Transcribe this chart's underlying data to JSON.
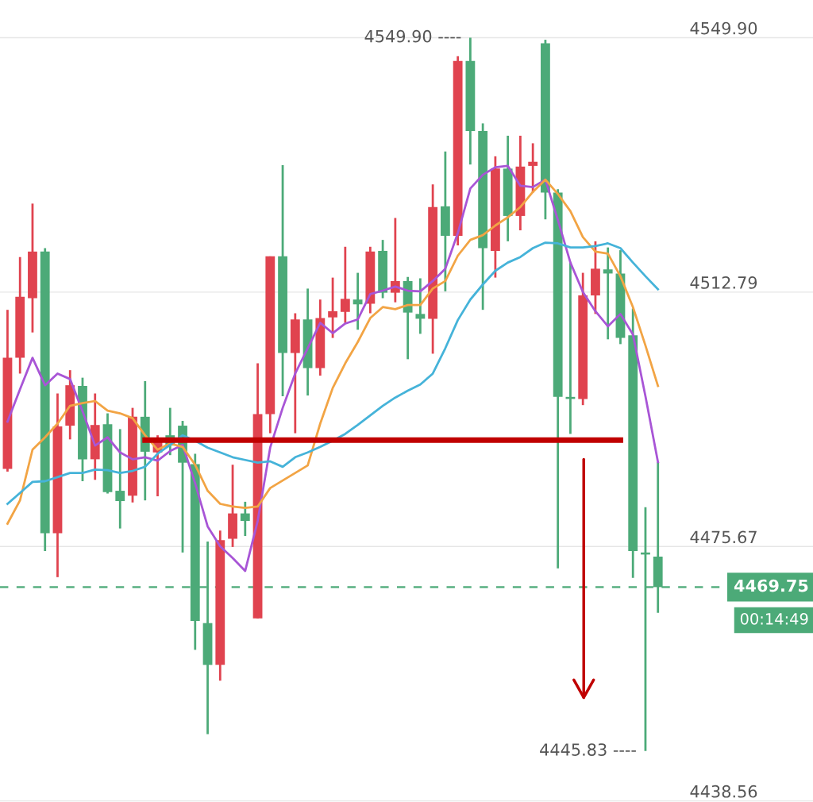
{
  "chart_data": {
    "type": "candlestick",
    "categories": [
      null,
      null,
      null,
      null,
      null,
      null,
      null,
      null,
      null,
      null,
      null,
      null,
      null,
      null,
      null,
      null,
      null,
      null,
      null,
      null,
      null,
      null,
      null,
      null,
      null,
      null,
      null,
      null,
      null,
      null,
      null,
      null,
      null,
      null,
      null,
      null,
      null,
      null,
      null,
      null,
      null,
      null,
      null,
      null,
      null,
      null,
      null,
      null,
      null,
      null,
      null,
      null,
      null
    ],
    "ohlc": [
      [
        4487.0,
        4510.2,
        4486.6,
        4503.2
      ],
      [
        4503.2,
        4517.9,
        4500.9,
        4512.1
      ],
      [
        4511.9,
        4525.7,
        4506.9,
        4518.7
      ],
      [
        4518.7,
        4519.2,
        4475.0,
        4477.6
      ],
      [
        4477.6,
        4498.0,
        4471.2,
        4493.2
      ],
      [
        4493.3,
        4501.4,
        4491.3,
        4499.2
      ],
      [
        4499.1,
        4500.3,
        4485.2,
        4488.4
      ],
      [
        4488.4,
        4498.0,
        4485.4,
        4493.4
      ],
      [
        4493.5,
        4495.1,
        4483.4,
        4483.6
      ],
      [
        4483.8,
        4492.8,
        4478.3,
        4482.3
      ],
      [
        4483.1,
        4495.9,
        4482.1,
        4494.6
      ],
      [
        4494.6,
        4499.8,
        4482.4,
        4489.5
      ],
      [
        4489.4,
        4491.9,
        4483.0,
        4491.1
      ],
      [
        4491.9,
        4495.9,
        4489.0,
        4490.4
      ],
      [
        4493.3,
        4494.0,
        4474.8,
        4487.9
      ],
      [
        4487.7,
        4489.2,
        4460.6,
        4464.8
      ],
      [
        4464.5,
        4476.4,
        4448.3,
        4458.4
      ],
      [
        4458.4,
        4478.0,
        4456.1,
        4476.6
      ],
      [
        4476.8,
        4487.6,
        4475.6,
        4480.5
      ],
      [
        4480.5,
        4482.2,
        4477.2,
        4479.4
      ],
      [
        4465.2,
        4502.4,
        4465.2,
        4495.0
      ],
      [
        4495.0,
        4518.0,
        4492.2,
        4518.0
      ],
      [
        4518.0,
        4531.3,
        4497.6,
        4503.9
      ],
      [
        4503.9,
        4509.7,
        4492.2,
        4508.8
      ],
      [
        4508.8,
        4513.3,
        4497.7,
        4501.7
      ],
      [
        4501.7,
        4511.7,
        4500.6,
        4509.0
      ],
      [
        4509.1,
        4514.9,
        4506.1,
        4510.0
      ],
      [
        4509.9,
        4519.4,
        4508.3,
        4511.8
      ],
      [
        4511.7,
        4515.6,
        4507.3,
        4511.0
      ],
      [
        4511.1,
        4519.4,
        4509.7,
        4518.7
      ],
      [
        4518.8,
        4520.4,
        4511.9,
        4512.7
      ],
      [
        4512.7,
        4523.6,
        4511.3,
        4514.4
      ],
      [
        4514.4,
        4515.0,
        4503.0,
        4509.8
      ],
      [
        4509.6,
        4514.8,
        4506.7,
        4508.9
      ],
      [
        4508.9,
        4528.5,
        4503.8,
        4525.2
      ],
      [
        4525.3,
        4533.3,
        4512.9,
        4521.0
      ],
      [
        4521.0,
        4547.2,
        4519.6,
        4546.5
      ],
      [
        4546.5,
        4549.9,
        4531.4,
        4536.3
      ],
      [
        4536.3,
        4537.4,
        4510.2,
        4519.2
      ],
      [
        4518.8,
        4532.6,
        4514.9,
        4530.8
      ],
      [
        4530.8,
        4535.6,
        4520.2,
        4523.9
      ],
      [
        4523.9,
        4535.6,
        4521.8,
        4531.1
      ],
      [
        4531.2,
        4534.5,
        4527.3,
        4531.8
      ],
      [
        4549.1,
        4549.6,
        4523.4,
        4527.3
      ],
      [
        4527.3,
        4527.8,
        4472.5,
        4497.5
      ],
      [
        4497.5,
        4517.2,
        4492.1,
        4497.2
      ],
      [
        4497.2,
        4515.6,
        4496.3,
        4512.3
      ],
      [
        4512.3,
        4520.2,
        4509.6,
        4516.2
      ],
      [
        4516.1,
        4519.3,
        4505.9,
        4515.5
      ],
      [
        4515.5,
        4518.9,
        4505.2,
        4506.1
      ],
      [
        4506.5,
        4510.4,
        4471.1,
        4475.0
      ],
      [
        4474.8,
        4481.4,
        4445.83,
        4474.5
      ],
      [
        4474.2,
        4488.0,
        4466.0,
        4469.75
      ]
    ],
    "colors": [
      "#e0434f",
      "#e0434f",
      "#e0434f",
      "#4caa78",
      "#e0434f",
      "#e0434f",
      "#4caa78",
      "#e0434f",
      "#4caa78",
      "#4caa78",
      "#e0434f",
      "#4caa78",
      "#e0434f",
      "#4caa78",
      "#4caa78",
      "#4caa78",
      "#4caa78",
      "#e0434f",
      "#e0434f",
      "#4caa78",
      "#e0434f",
      "#e0434f",
      "#4caa78",
      "#e0434f",
      "#4caa78",
      "#e0434f",
      "#e0434f",
      "#e0434f",
      "#4caa78",
      "#e0434f",
      "#4caa78",
      "#e0434f",
      "#4caa78",
      "#4caa78",
      "#e0434f",
      "#4caa78",
      "#e0434f",
      "#4caa78",
      "#4caa78",
      "#e0434f",
      "#4caa78",
      "#e0434f",
      "#e0434f",
      "#4caa78",
      "#4caa78",
      "#4caa78",
      "#e0434f",
      "#e0434f",
      "#4caa78",
      "#4caa78",
      "#4caa78",
      "#4caa78",
      "#4caa78"
    ],
    "series": [
      {
        "type": "line",
        "color": "#a855d6",
        "values": [
          4493.9,
          4498.6,
          4503.2,
          4499.2,
          4500.9,
          4500.1,
          4495.4,
          4490.4,
          4491.6,
          4489.4,
          4488.4,
          4488.7,
          4488.2,
          4489.6,
          4490.5,
          4484.9,
          4478.6,
          4475.7,
          4474.0,
          4472.1,
          4479.4,
          4490.1,
          4495.9,
          4500.9,
          4504.6,
          4508.3,
          4506.8,
          4508.2,
          4508.8,
          4512.5,
          4513.0,
          4513.6,
          4513.0,
          4512.9,
          4514.4,
          4516.2,
          4521.4,
          4527.9,
          4529.9,
          4531.0,
          4531.2,
          4528.3,
          4528.1,
          4529.2,
          4523.3,
          4517.1,
          4512.8,
          4510.0,
          4507.8,
          4509.6,
          4506.6,
          4497.6,
          4488.0
        ]
      },
      {
        "type": "line",
        "color": "#f2a444",
        "values": [
          4479.0,
          4482.4,
          4489.8,
          4491.6,
          4493.6,
          4496.2,
          4496.6,
          4496.9,
          4495.5,
          4495.1,
          4494.4,
          4491.9,
          4489.8,
          4490.7,
          4490.2,
          4487.6,
          4483.8,
          4481.9,
          4481.5,
          4481.3,
          4481.5,
          4484.2,
          4485.3,
          4486.4,
          4487.5,
          4493.6,
          4498.8,
          4502.4,
          4505.5,
          4509.0,
          4510.6,
          4510.3,
          4510.9,
          4510.9,
          4513.3,
          4514.4,
          4518.1,
          4520.4,
          4521.1,
          4522.5,
          4523.7,
          4525.2,
          4527.4,
          4529.2,
          4527.1,
          4524.6,
          4520.8,
          4518.7,
          4518.4,
          4515.1,
          4510.6,
          4505.0,
          4499.1
        ]
      },
      {
        "type": "line",
        "color": "#45b3d9",
        "values": [
          4481.9,
          4483.5,
          4485.1,
          4485.2,
          4485.8,
          4486.4,
          4486.4,
          4486.9,
          4486.8,
          4486.4,
          4486.7,
          4487.3,
          4489.2,
          4490.5,
          4491.9,
          4491.1,
          4490.1,
          4489.4,
          4488.7,
          4488.3,
          4487.9,
          4488.1,
          4487.3,
          4488.7,
          4489.4,
          4490.2,
          4491.1,
          4492.1,
          4493.4,
          4494.8,
          4496.2,
          4497.4,
          4498.4,
          4499.3,
          4500.9,
          4504.6,
          4508.7,
          4511.7,
          4513.9,
          4515.9,
          4517.1,
          4517.9,
          4519.2,
          4520.0,
          4519.9,
          4519.3,
          4519.3,
          4519.5,
          4519.9,
          4519.2,
          4517.1,
          4515.1,
          4513.2
        ]
      },
      {
        "type": "line",
        "color": "#c00000",
        "values": [
          null,
          null,
          null,
          null,
          null,
          null,
          null,
          null,
          null,
          null,
          null,
          4491.2,
          4491.2,
          4491.2,
          4491.2,
          4491.2,
          4491.2,
          4491.2,
          4491.2,
          4491.2,
          4491.2,
          4491.2,
          4491.2,
          4491.2,
          4491.2,
          4491.2,
          4491.2,
          4491.2,
          4491.2,
          4491.2,
          4491.2,
          4491.2,
          4491.2,
          4491.2,
          4491.2,
          4491.2,
          4491.2,
          4491.2,
          4491.2,
          4491.2,
          4491.2,
          4491.2,
          4491.2,
          4491.2,
          4491.2,
          4491.2,
          4491.2,
          4491.2,
          4491.2,
          4491.2,
          null,
          null,
          null
        ]
      }
    ],
    "ylim": [
      4438.4,
      4555.4
    ],
    "yticks": [
      {
        "value": 4549.9,
        "label": "4549.90"
      },
      4512.79,
      4475.67,
      4438.56
    ],
    "grid": "y",
    "tick_labels": "y",
    "ref_lines": [
      {
        "axis": "y",
        "value": 4469.75,
        "label": "4469.75",
        "color": "#4caa78",
        "line_style": "dashed"
      }
    ],
    "annotations": [
      "4549.90 ----",
      "4445.83 ----",
      "00:14:49"
    ]
  }
}
